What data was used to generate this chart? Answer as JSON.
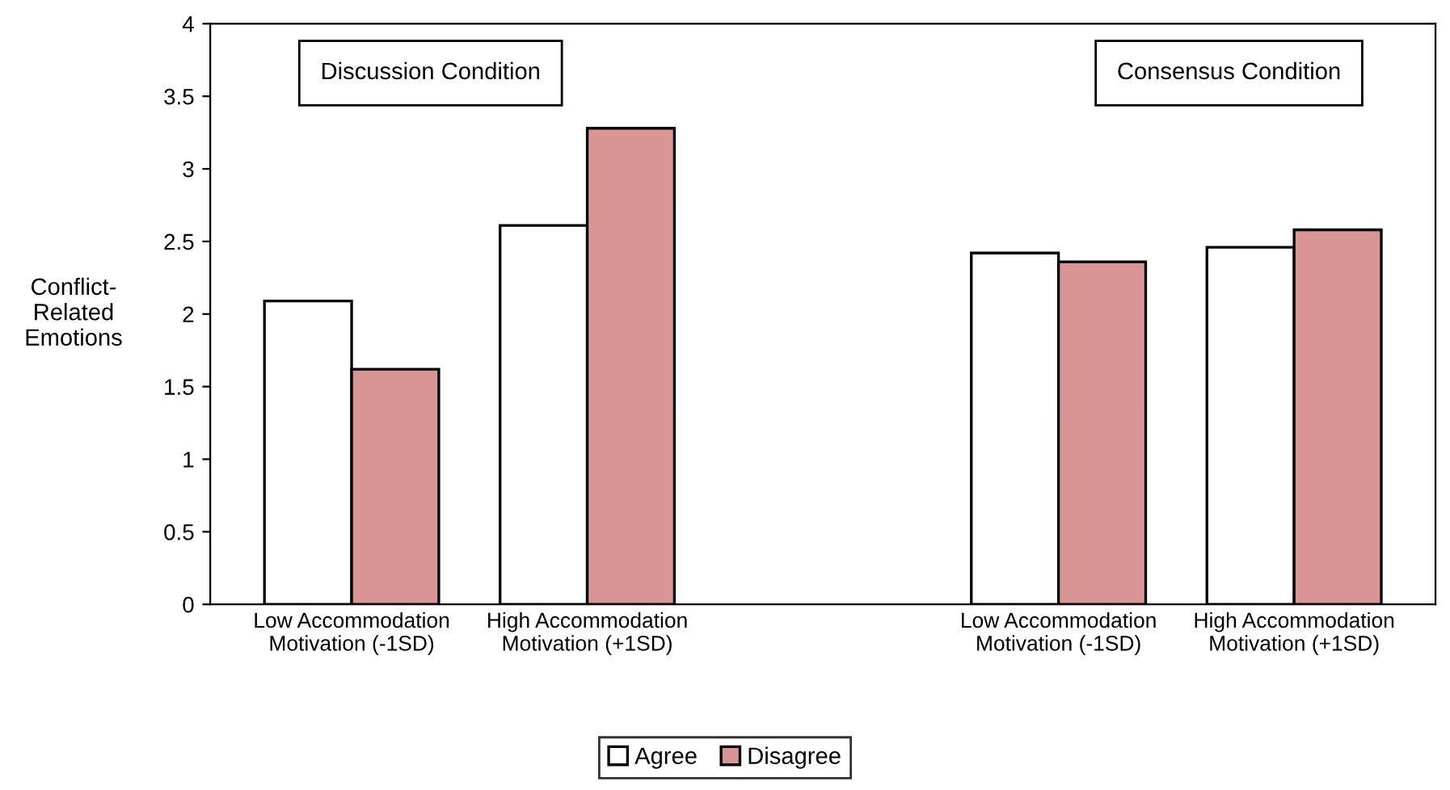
{
  "chart_data": {
    "type": "bar",
    "ylabel": "Conflict-\nRelated\nEmotions",
    "categories": [
      "Low Accommodation\nMotivation (-1SD)",
      "High Accommodation\nMotivation (+1SD)",
      null,
      "Low Accommodation\nMotivation (-1SD)",
      "High Accommodation\nMotivation (+1SD)"
    ],
    "series": [
      {
        "name": "Agree",
        "color": "#ffffff",
        "values": [
          2.09,
          2.61,
          null,
          2.42,
          2.46
        ]
      },
      {
        "name": "Disagree",
        "color": "#d99594",
        "values": [
          1.62,
          3.28,
          null,
          2.36,
          2.58
        ]
      }
    ],
    "ylim": [
      0,
      4
    ],
    "yticks": [
      0,
      0.5,
      1,
      1.5,
      2,
      2.5,
      3,
      3.5,
      4
    ],
    "annotations": [
      "Discussion Condition",
      "Consensus Condition"
    ],
    "legend": "bottom",
    "grid": false
  }
}
